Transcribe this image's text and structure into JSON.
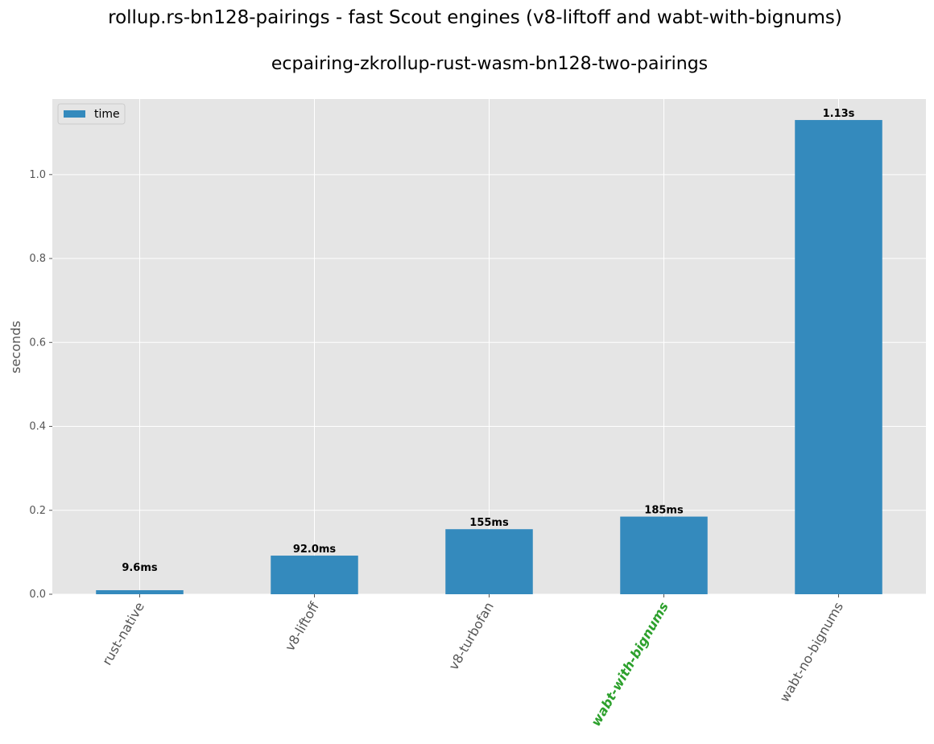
{
  "figure": {
    "suptitle": "rollup.rs-bn128-pairings - fast Scout engines (v8-liftoff and wabt-with-bignums)"
  },
  "chart_data": {
    "type": "bar",
    "title": "ecpairing-zkrollup-rust-wasm-bn128-two-pairings",
    "xlabel": "",
    "ylabel": "seconds",
    "categories": [
      "rust-native",
      "v8-liftoff",
      "v8-turbofan",
      "wabt-with-bignums",
      "wabt-no-bignums"
    ],
    "series": [
      {
        "name": "time",
        "color": "#348abd",
        "values": [
          0.0096,
          0.092,
          0.155,
          0.185,
          1.13
        ],
        "value_labels": [
          "9.6ms",
          "92.0ms",
          "155ms",
          "185ms",
          "1.13s"
        ]
      }
    ],
    "ylim": [
      0,
      1.18
    ],
    "yticks": [
      0.0,
      0.2,
      0.4,
      0.6,
      0.8,
      1.0
    ],
    "ytick_labels": [
      "0.0",
      "0.2",
      "0.4",
      "0.6",
      "0.8",
      "1.0"
    ],
    "grid": true,
    "legend": "top-left",
    "highlighted_categories": [
      "wabt-with-bignums"
    ],
    "highlight_color": "#2ca02c",
    "axes_background": "#e5e5e5",
    "grid_color": "#ffffff"
  }
}
